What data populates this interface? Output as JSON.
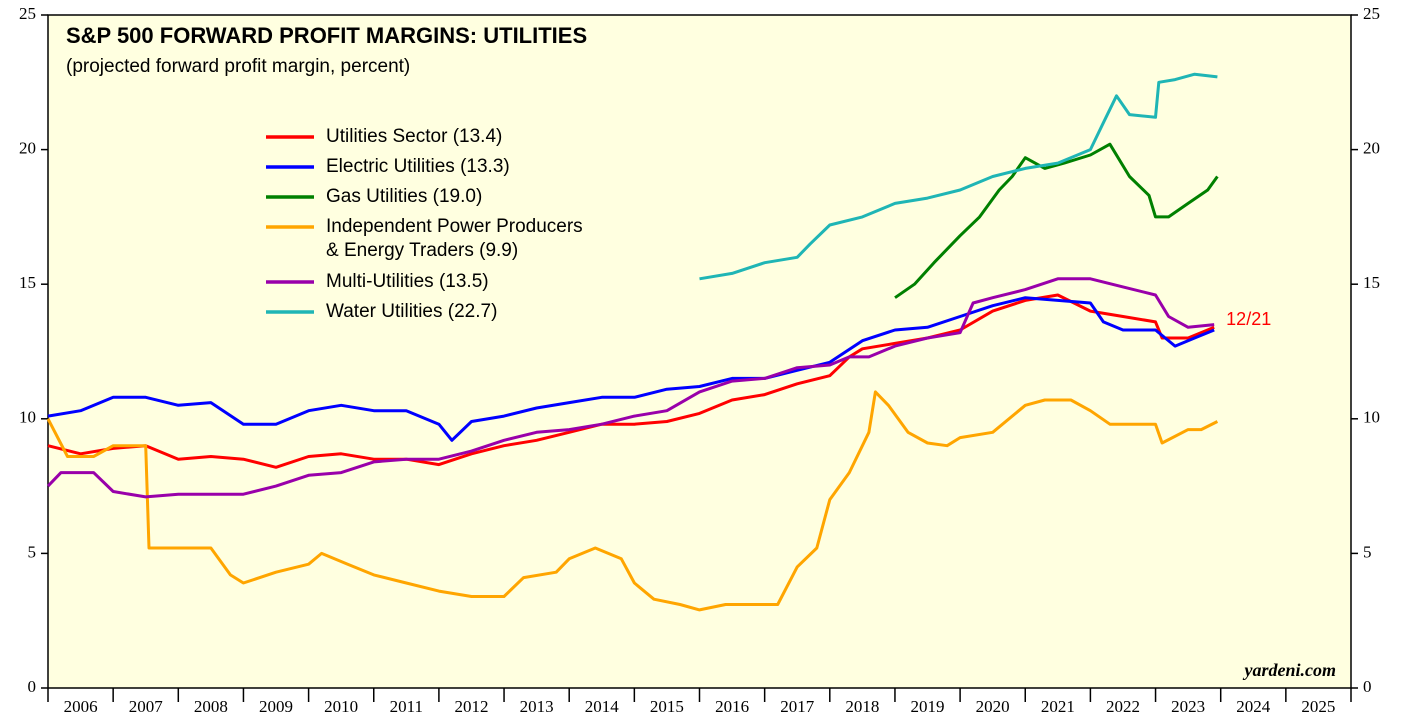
{
  "chart_data": {
    "type": "line",
    "title": "S&P 500 FORWARD PROFIT MARGINS: UTILITIES",
    "subtitle": "(projected forward profit margin, percent)",
    "annotation": "12/21",
    "source": "yardeni.com",
    "xlim": [
      2006,
      2026
    ],
    "xticks": [
      2006,
      2007,
      2008,
      2009,
      2010,
      2011,
      2012,
      2013,
      2014,
      2015,
      2016,
      2017,
      2018,
      2019,
      2020,
      2021,
      2022,
      2023,
      2024,
      2025,
      2026
    ],
    "xtick_labels": [
      {
        "value": 2006.5,
        "label": "2006"
      },
      {
        "value": 2007.5,
        "label": "2007"
      },
      {
        "value": 2008.5,
        "label": "2008"
      },
      {
        "value": 2009.5,
        "label": "2009"
      },
      {
        "value": 2010.5,
        "label": "2010"
      },
      {
        "value": 2011.5,
        "label": "2011"
      },
      {
        "value": 2012.5,
        "label": "2012"
      },
      {
        "value": 2013.5,
        "label": "2013"
      },
      {
        "value": 2014.5,
        "label": "2014"
      },
      {
        "value": 2015.5,
        "label": "2015"
      },
      {
        "value": 2016.5,
        "label": "2016"
      },
      {
        "value": 2017.5,
        "label": "2017"
      },
      {
        "value": 2018.5,
        "label": "2018"
      },
      {
        "value": 2019.5,
        "label": "2019"
      },
      {
        "value": 2020.5,
        "label": "2020"
      },
      {
        "value": 2021.5,
        "label": "2021"
      },
      {
        "value": 2022.5,
        "label": "2022"
      },
      {
        "value": 2023.5,
        "label": "2023"
      },
      {
        "value": 2024.5,
        "label": "2024"
      },
      {
        "value": 2025.5,
        "label": "2025"
      }
    ],
    "ylim": [
      0,
      25
    ],
    "yticks": [
      0,
      5,
      10,
      15,
      20,
      25
    ],
    "y2lim": [
      0,
      25
    ],
    "y2ticks": [
      0,
      5,
      10,
      15,
      20,
      25
    ],
    "series": [
      {
        "name": "Utilities Sector (13.4)",
        "color": "#ff0000",
        "x": [
          2006,
          2006.5,
          2007,
          2007.5,
          2008,
          2008.5,
          2009,
          2009.5,
          2010,
          2010.5,
          2011,
          2011.5,
          2012,
          2012.5,
          2013,
          2013.5,
          2014,
          2014.5,
          2015,
          2015.5,
          2016,
          2016.5,
          2017,
          2017.5,
          2018,
          2018.3,
          2018.5,
          2019,
          2019.5,
          2020,
          2020.5,
          2021,
          2021.5,
          2022,
          2022.5,
          2023,
          2023.1,
          2023.5,
          2023.9
        ],
        "values": [
          9.0,
          8.7,
          8.9,
          9.0,
          8.5,
          8.6,
          8.5,
          8.2,
          8.6,
          8.7,
          8.5,
          8.5,
          8.3,
          8.7,
          9.0,
          9.2,
          9.5,
          9.8,
          9.8,
          9.9,
          10.2,
          10.7,
          10.9,
          11.3,
          11.6,
          12.3,
          12.6,
          12.8,
          13.0,
          13.3,
          14.0,
          14.4,
          14.6,
          14.0,
          13.8,
          13.6,
          13.0,
          13.0,
          13.4
        ]
      },
      {
        "name": "Electric Utilities (13.3)",
        "color": "#0000ff",
        "x": [
          2006,
          2006.5,
          2007,
          2007.5,
          2008,
          2008.5,
          2009,
          2009.5,
          2010,
          2010.5,
          2011,
          2011.5,
          2012,
          2012.2,
          2012.5,
          2013,
          2013.5,
          2014,
          2014.5,
          2015,
          2015.5,
          2016,
          2016.5,
          2017,
          2017.5,
          2018,
          2018.5,
          2019,
          2019.5,
          2020,
          2020.5,
          2021,
          2021.5,
          2022,
          2022.2,
          2022.5,
          2023,
          2023.3,
          2023.6,
          2023.9
        ],
        "values": [
          10.1,
          10.3,
          10.8,
          10.8,
          10.5,
          10.6,
          9.8,
          9.8,
          10.3,
          10.5,
          10.3,
          10.3,
          9.8,
          9.2,
          9.9,
          10.1,
          10.4,
          10.6,
          10.8,
          10.8,
          11.1,
          11.2,
          11.5,
          11.5,
          11.8,
          12.1,
          12.9,
          13.3,
          13.4,
          13.8,
          14.2,
          14.5,
          14.4,
          14.3,
          13.6,
          13.3,
          13.3,
          12.7,
          13.0,
          13.3
        ]
      },
      {
        "name": "Gas Utilities (19.0)",
        "color": "#008000",
        "x": [
          2019.0,
          2019.3,
          2019.6,
          2020.0,
          2020.3,
          2020.6,
          2020.8,
          2021.0,
          2021.3,
          2021.6,
          2022,
          2022.3,
          2022.6,
          2022.9,
          2023.0,
          2023.2,
          2023.5,
          2023.8,
          2023.95
        ],
        "values": [
          14.5,
          15.0,
          15.8,
          16.8,
          17.5,
          18.5,
          19.0,
          19.7,
          19.3,
          19.5,
          19.8,
          20.2,
          19.0,
          18.3,
          17.5,
          17.5,
          18.0,
          18.5,
          19.0
        ]
      },
      {
        "name": "Independent Power Producers\n& Energy Traders (9.9)",
        "color": "#ffa500",
        "x": [
          2006,
          2006.3,
          2006.7,
          2007,
          2007.5,
          2007.55,
          2008,
          2008.5,
          2008.8,
          2009,
          2009.5,
          2010,
          2010.2,
          2010.6,
          2011,
          2011.5,
          2012,
          2012.5,
          2013,
          2013.3,
          2013.8,
          2014,
          2014.4,
          2014.8,
          2015,
          2015.3,
          2015.7,
          2016,
          2016.4,
          2016.8,
          2017.2,
          2017.5,
          2017.8,
          2018,
          2018.3,
          2018.6,
          2018.7,
          2018.9,
          2019.2,
          2019.5,
          2019.8,
          2020,
          2020.5,
          2021,
          2021.3,
          2021.7,
          2022,
          2022.3,
          2022.7,
          2023,
          2023.1,
          2023.5,
          2023.7,
          2023.95
        ],
        "values": [
          10.0,
          8.6,
          8.6,
          9.0,
          9.0,
          5.2,
          5.2,
          5.2,
          4.2,
          3.9,
          4.3,
          4.6,
          5.0,
          4.6,
          4.2,
          3.9,
          3.6,
          3.4,
          3.4,
          4.1,
          4.3,
          4.8,
          5.2,
          4.8,
          3.9,
          3.3,
          3.1,
          2.9,
          3.1,
          3.1,
          3.1,
          4.5,
          5.2,
          7.0,
          8.0,
          9.5,
          11.0,
          10.5,
          9.5,
          9.1,
          9.0,
          9.3,
          9.5,
          10.5,
          10.7,
          10.7,
          10.3,
          9.8,
          9.8,
          9.8,
          9.1,
          9.6,
          9.6,
          9.9
        ]
      },
      {
        "name": "Multi-Utilities (13.5)",
        "color": "#9900aa",
        "x": [
          2006,
          2006.2,
          2006.7,
          2007,
          2007.5,
          2008,
          2008.5,
          2009,
          2009.5,
          2010,
          2010.5,
          2011,
          2011.5,
          2012,
          2012.5,
          2013,
          2013.5,
          2014,
          2014.5,
          2015,
          2015.5,
          2016,
          2016.5,
          2017,
          2017.5,
          2018,
          2018.3,
          2018.6,
          2019,
          2019.5,
          2020,
          2020.2,
          2020.5,
          2021,
          2021.5,
          2022,
          2022.5,
          2023,
          2023.2,
          2023.5,
          2023.9
        ],
        "values": [
          7.5,
          8.0,
          8.0,
          7.3,
          7.1,
          7.2,
          7.2,
          7.2,
          7.5,
          7.9,
          8.0,
          8.4,
          8.5,
          8.5,
          8.8,
          9.2,
          9.5,
          9.6,
          9.8,
          10.1,
          10.3,
          11.0,
          11.4,
          11.5,
          11.9,
          12.0,
          12.3,
          12.3,
          12.7,
          13.0,
          13.2,
          14.3,
          14.5,
          14.8,
          15.2,
          15.2,
          14.9,
          14.6,
          13.8,
          13.4,
          13.5
        ]
      },
      {
        "name": "Water Utilities (22.7)",
        "color": "#1fb5b5",
        "x": [
          2016,
          2016.5,
          2017,
          2017.5,
          2017.7,
          2018,
          2018.5,
          2019,
          2019.5,
          2020,
          2020.5,
          2021,
          2021.5,
          2022,
          2022.2,
          2022.4,
          2022.6,
          2023,
          2023.05,
          2023.3,
          2023.6,
          2023.95
        ],
        "values": [
          15.2,
          15.4,
          15.8,
          16.0,
          16.5,
          17.2,
          17.5,
          18.0,
          18.2,
          18.5,
          19.0,
          19.3,
          19.5,
          20.0,
          21.0,
          22.0,
          21.3,
          21.2,
          22.5,
          22.6,
          22.8,
          22.7
        ]
      }
    ]
  }
}
